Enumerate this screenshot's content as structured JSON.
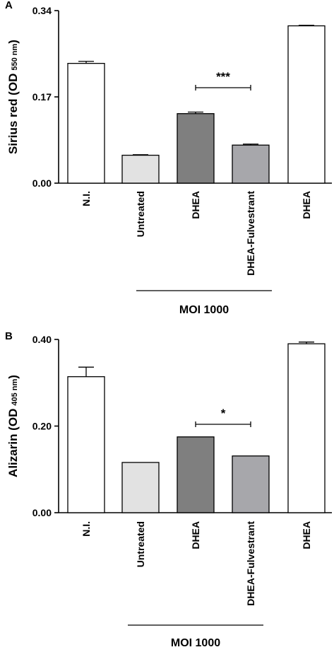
{
  "chart_data": [
    {
      "panel_label": "A",
      "type": "bar",
      "ylabel_main": "Sirius red (OD",
      "ylabel_sub": "550 nm",
      "ylabel_close": ")",
      "yticks": [
        "0.00",
        "0.17",
        "0.34"
      ],
      "ylim": [
        0,
        0.34
      ],
      "categories": [
        "N.I.",
        "Untreated",
        "DHEA",
        "DHEA-Fulvestrant",
        "DHEA"
      ],
      "values": [
        0.236,
        0.055,
        0.137,
        0.075,
        0.31
      ],
      "errors": [
        0.004,
        0.001,
        0.003,
        0.002,
        0.001
      ],
      "colors": [
        "#ffffff",
        "#e2e2e2",
        "#7f7f7f",
        "#a7a7ab",
        "#ffffff"
      ],
      "significance": {
        "from": 2,
        "to": 3,
        "label": "***"
      },
      "group": {
        "from": 1,
        "to": 3,
        "label": "MOI 1000"
      }
    },
    {
      "panel_label": "B",
      "type": "bar",
      "ylabel_main": "Alizarin (OD",
      "ylabel_sub": "405 nm",
      "ylabel_close": ")",
      "yticks": [
        "0.00",
        "0.20",
        "0.40"
      ],
      "ylim": [
        0,
        0.4
      ],
      "categories": [
        "N.I.",
        "Untreated",
        "DHEA",
        "DHEA-Fulvestrant",
        "DHEA"
      ],
      "values": [
        0.314,
        0.116,
        0.175,
        0.131,
        0.39
      ],
      "errors": [
        0.022,
        0.0,
        0.0,
        0.0,
        0.004
      ],
      "colors": [
        "#ffffff",
        "#e2e2e2",
        "#7f7f7f",
        "#a7a7ab",
        "#ffffff"
      ],
      "significance": {
        "from": 2,
        "to": 3,
        "label": "*"
      },
      "group": {
        "from": 1,
        "to": 3,
        "label": "MOI 1000"
      }
    }
  ]
}
